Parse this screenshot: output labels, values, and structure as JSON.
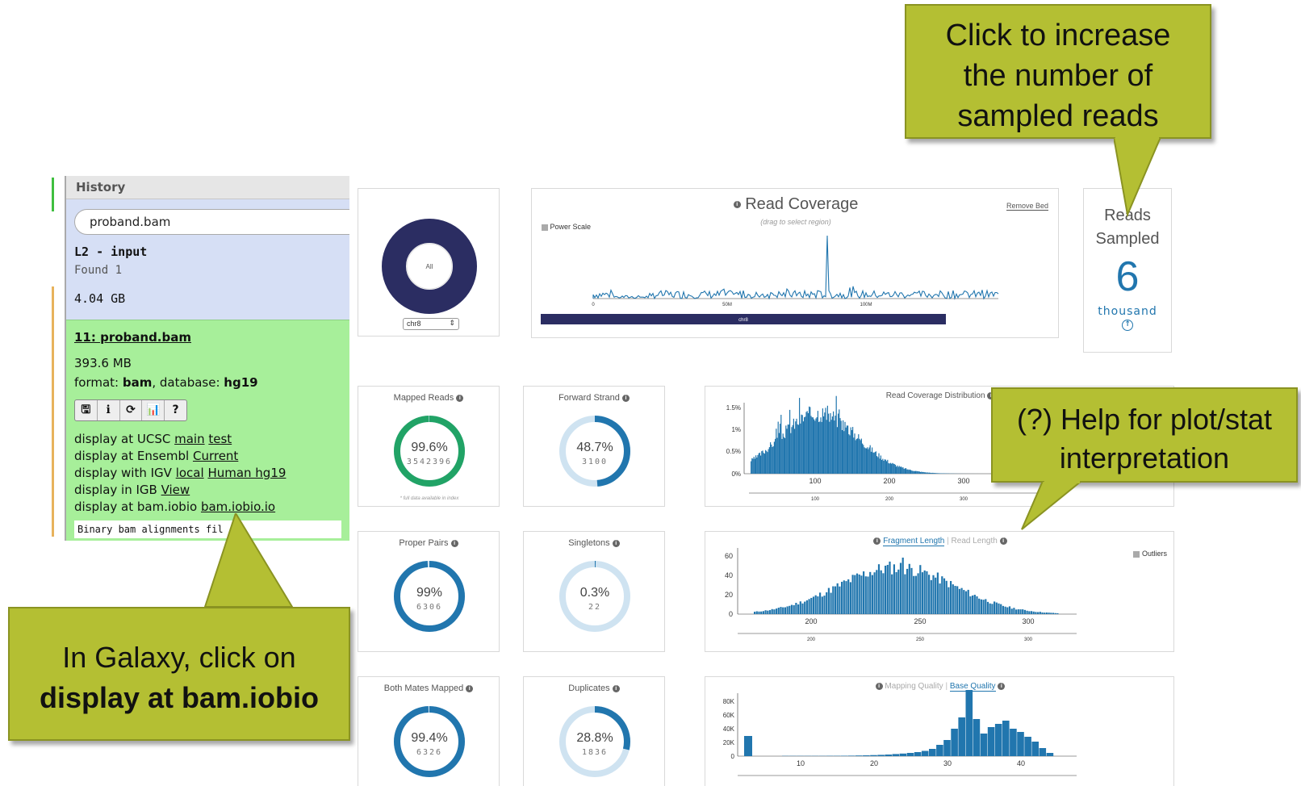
{
  "galaxy": {
    "panel_title": "History",
    "search_value": "proband.bam",
    "history_name": "L2 - input",
    "found": "Found 1",
    "history_size": "4.04 GB",
    "dataset": {
      "title": "11: proband.bam",
      "size": "393.6 MB",
      "format_label": "format: ",
      "format_value": "bam",
      "database_label": ", database: ",
      "database_value": "hg19",
      "icons": [
        "save-icon",
        "info-icon",
        "rerun-icon",
        "visualize-icon",
        "help-icon"
      ],
      "icon_glyphs": [
        "🖫",
        "ℹ",
        "⟳",
        "📊",
        "?"
      ],
      "links": [
        {
          "prefix": "display at UCSC ",
          "links": [
            "main",
            "test"
          ]
        },
        {
          "prefix": "display at Ensembl ",
          "links": [
            "Current"
          ]
        },
        {
          "prefix": "display with IGV ",
          "links": [
            "local",
            "Human hg19"
          ]
        },
        {
          "prefix": "display in IGB ",
          "links": [
            "View"
          ]
        },
        {
          "prefix": "display at bam.iobio ",
          "links": [
            "bam.iobio.io"
          ]
        }
      ],
      "peek": "Binary bam alignments fil"
    }
  },
  "dashboard": {
    "donut": {
      "center_label": "All",
      "chrom_select": "chr8"
    },
    "read_coverage": {
      "title": "Read Coverage",
      "subtitle": "(drag to select region)",
      "remove_bed": "Remove Bed",
      "power_scale": "Power Scale",
      "ticks": [
        "0",
        "50M",
        "100M"
      ],
      "chrom_bar_label": "chr8"
    },
    "reads_sampled": {
      "line1": "Reads",
      "line2": "Sampled",
      "value": "6",
      "unit": "thousand"
    },
    "stats": [
      {
        "key": "mapped",
        "title": "Mapped Reads",
        "percent": "99.6%",
        "count": "3542396",
        "note": "* full data available in index",
        "fraction": 0.996,
        "color": "#21a366"
      },
      {
        "key": "forward",
        "title": "Forward Strand",
        "percent": "48.7%",
        "count": "3100",
        "fraction": 0.487,
        "color": "#2176ae"
      },
      {
        "key": "proper",
        "title": "Proper Pairs",
        "percent": "99%",
        "count": "6306",
        "fraction": 0.99,
        "color": "#2176ae"
      },
      {
        "key": "singletons",
        "title": "Singletons",
        "percent": "0.3%",
        "count": "22",
        "fraction": 0.003,
        "color": "#2176ae"
      },
      {
        "key": "both",
        "title": "Both Mates Mapped",
        "percent": "99.4%",
        "count": "6326",
        "fraction": 0.994,
        "color": "#2176ae"
      },
      {
        "key": "dups",
        "title": "Duplicates",
        "percent": "28.8%",
        "count": "1836",
        "fraction": 0.288,
        "color": "#2176ae"
      }
    ],
    "coverage_dist": {
      "title": "Read Coverage Distribution",
      "y_ticks": [
        "1.5%",
        "1%",
        "0.5%",
        "0%"
      ],
      "x_ticks": [
        "100",
        "200",
        "300"
      ],
      "brush_ticks": [
        "100",
        "200",
        "300",
        "400"
      ]
    },
    "fragment": {
      "tab_active": "Fragment Length",
      "tab_inactive": "Read Length",
      "outliers": "Outliers",
      "y_ticks": [
        "60",
        "40",
        "20",
        "0"
      ],
      "x_ticks": [
        "200",
        "250",
        "300"
      ],
      "brush_ticks": [
        "200",
        "250",
        "300"
      ]
    },
    "quality": {
      "tab_inactive": "Mapping Quality",
      "tab_active": "Base Quality",
      "y_ticks": [
        "80K",
        "60K",
        "40K",
        "20K",
        "0"
      ],
      "x_ticks": [
        "10",
        "20",
        "30",
        "40"
      ]
    }
  },
  "callouts": {
    "reads": "Click to increase the number of sampled reads",
    "help": "(?) Help for plot/stat interpretation",
    "galaxy_line1": "In Galaxy, click on",
    "galaxy_line2": "display at bam.iobio"
  },
  "colors": {
    "bar": "#2176ae",
    "navy": "#2b2d62",
    "callout": "#b4bf33",
    "green_panel": "#a7ef9a",
    "blue_panel": "#d6dff5"
  }
}
